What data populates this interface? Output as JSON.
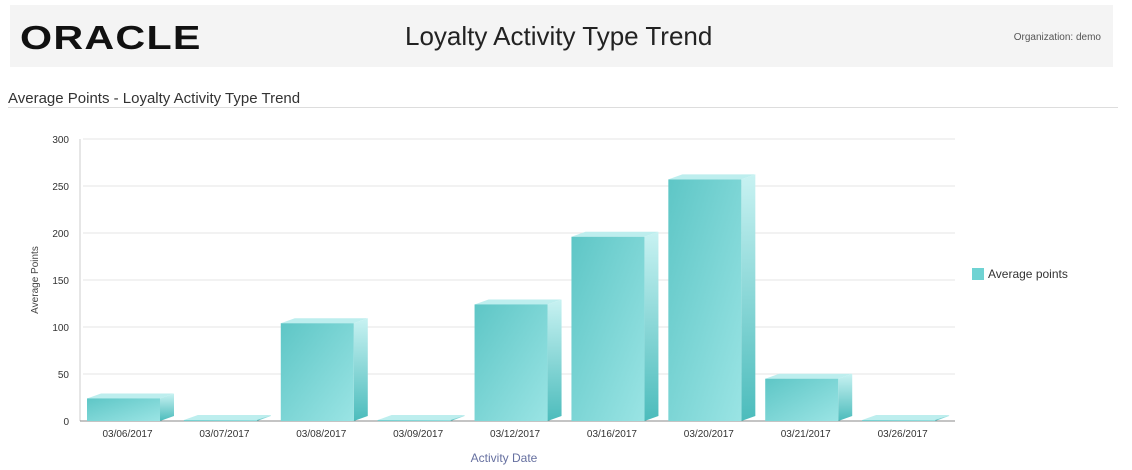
{
  "header": {
    "logo": "ORACLE",
    "title": "Loyalty Activity Type Trend",
    "organization": "Organization: demo"
  },
  "section_title": "Average Points - Loyalty Activity Type Trend",
  "chart_data": {
    "type": "bar",
    "categories": [
      "03/06/2017",
      "03/07/2017",
      "03/08/2017",
      "03/09/2017",
      "03/12/2017",
      "03/16/2017",
      "03/20/2017",
      "03/21/2017",
      "03/26/2017"
    ],
    "series": [
      {
        "name": "Average points",
        "values": [
          24,
          1,
          104,
          1,
          124,
          196,
          257,
          45,
          1
        ]
      }
    ],
    "xlabel": "Activity Date",
    "ylabel": "Average Points",
    "ylim": [
      0,
      300
    ],
    "yticks": [
      0,
      50,
      100,
      150,
      200,
      250,
      300
    ],
    "grid": true,
    "legend": "right",
    "color": "#6fd3d3"
  }
}
